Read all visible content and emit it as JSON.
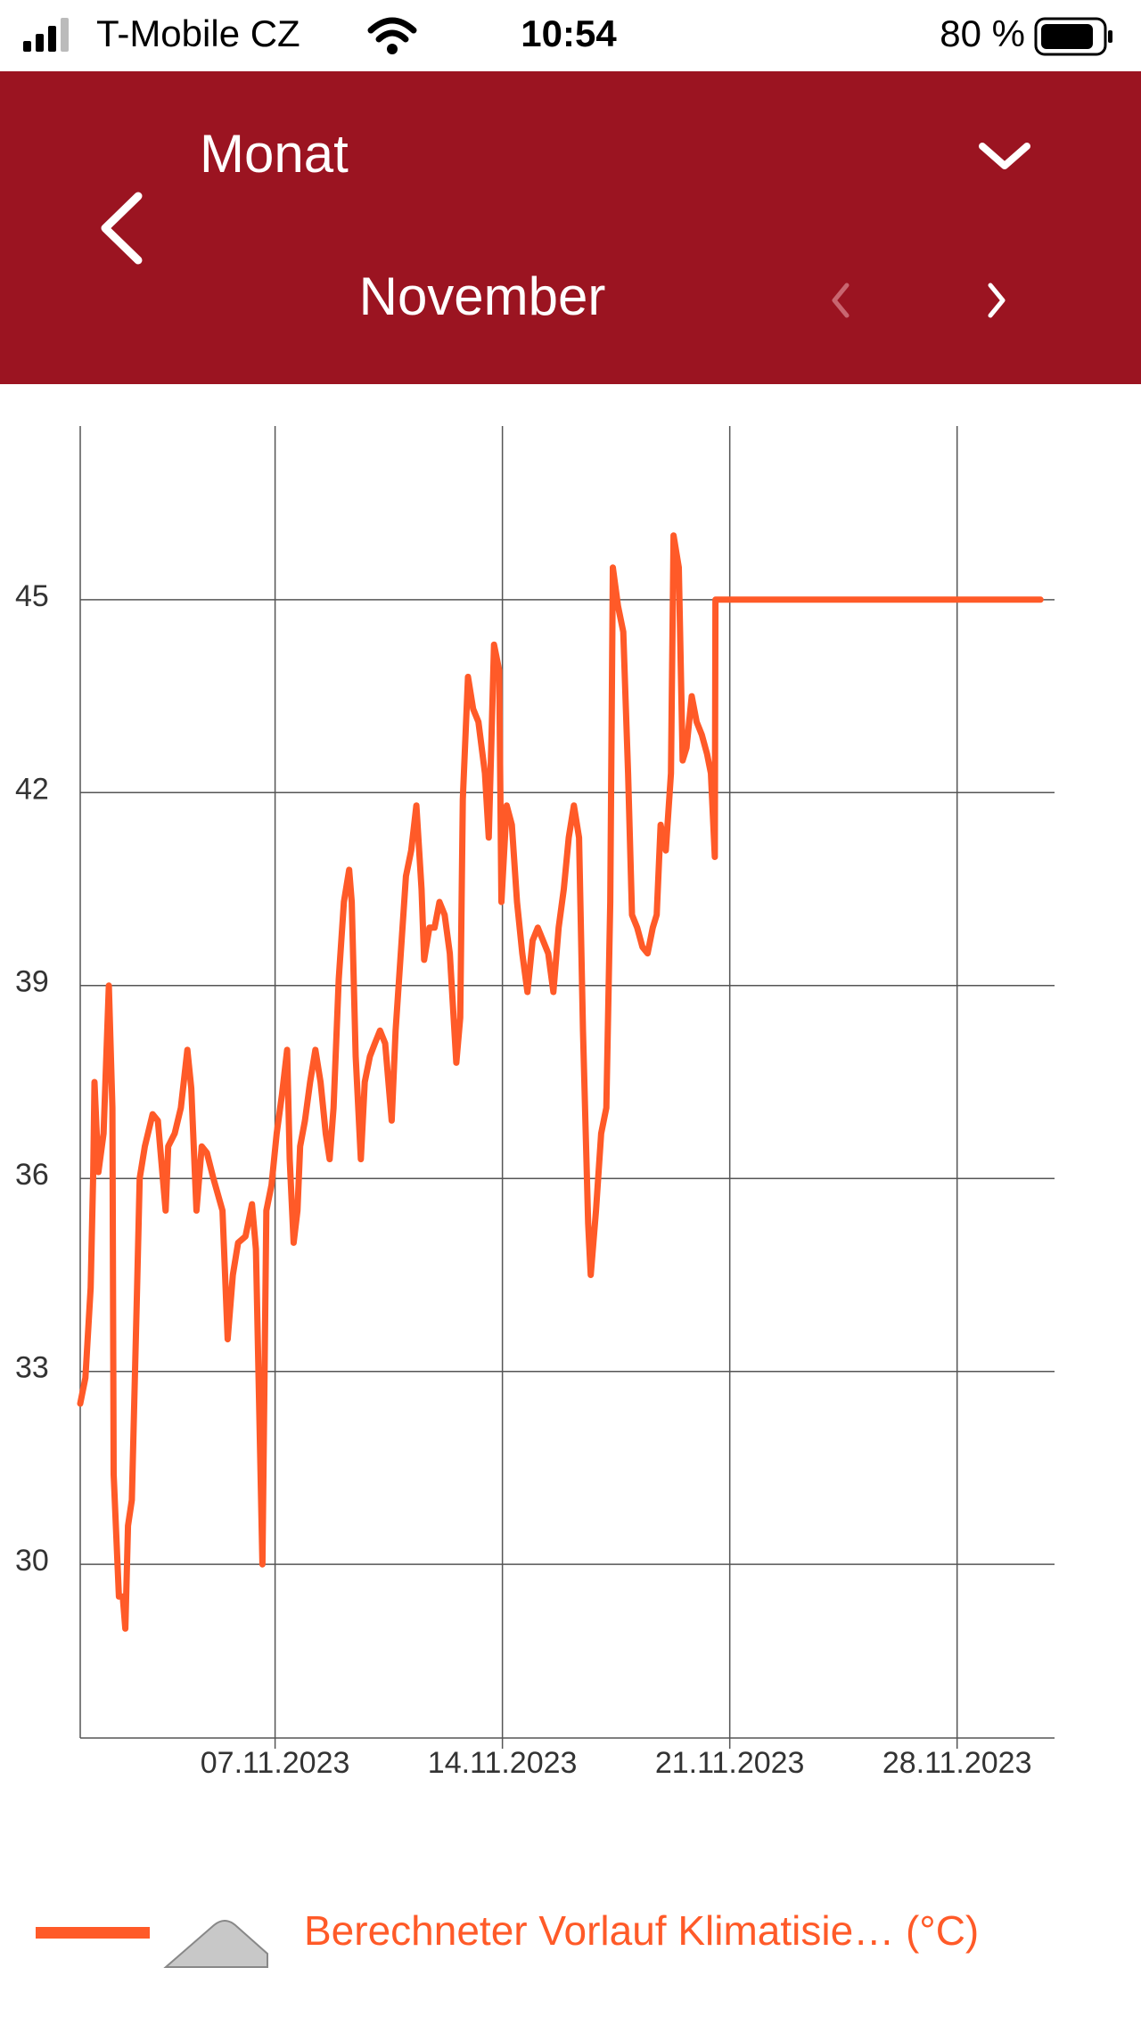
{
  "status_bar": {
    "carrier": "T-Mobile CZ",
    "time": "10:54",
    "battery": "80 %"
  },
  "header": {
    "period_label": "Monat",
    "period": "November"
  },
  "chart_data": {
    "type": "line",
    "x": [
      1.0,
      1.16,
      1.32,
      1.4,
      1.44,
      1.56,
      1.72,
      1.88,
      1.99,
      2.03,
      2.19,
      2.31,
      2.39,
      2.47,
      2.59,
      2.75,
      2.83,
      2.99,
      3.23,
      3.39,
      3.63,
      3.71,
      3.91,
      4.1,
      4.3,
      4.42,
      4.58,
      4.74,
      4.9,
      5.1,
      5.38,
      5.54,
      5.7,
      5.86,
      6.09,
      6.29,
      6.41,
      6.61,
      6.73,
      6.89,
      7.05,
      7.21,
      7.37,
      7.45,
      7.57,
      7.69,
      7.77,
      7.92,
      8.08,
      8.24,
      8.4,
      8.56,
      8.68,
      8.8,
      8.96,
      9.12,
      9.28,
      9.36,
      9.48,
      9.64,
      9.76,
      9.92,
      10.07,
      10.23,
      10.39,
      10.59,
      10.71,
      10.87,
      11.03,
      11.19,
      11.35,
      11.51,
      11.59,
      11.75,
      11.91,
      12.06,
      12.22,
      12.38,
      12.58,
      12.7,
      12.78,
      12.94,
      13.1,
      13.26,
      13.46,
      13.58,
      13.74,
      13.9,
      13.97,
      14.13,
      14.29,
      14.45,
      14.61,
      14.77,
      14.93,
      15.09,
      15.25,
      15.41,
      15.57,
      15.73,
      15.89,
      16.04,
      16.2,
      16.36,
      16.48,
      16.64,
      16.72,
      16.88,
      17.04,
      17.2,
      17.32,
      17.4,
      17.56,
      17.72,
      17.87,
      17.99,
      18.15,
      18.31,
      18.47,
      18.63,
      18.75,
      18.87,
      19.03,
      19.19,
      19.27,
      19.43,
      19.55,
      19.67,
      19.83,
      19.98,
      20.14,
      20.3,
      20.42,
      20.54,
      20.56,
      30.57
    ],
    "series": [
      {
        "name": "Berechneter Vorlauf Klimatisie… (°C)",
        "color": "#ff5a28",
        "values": [
          32.5,
          32.9,
          34.3,
          36.1,
          37.5,
          36.1,
          36.7,
          39.0,
          37.1,
          31.4,
          29.5,
          29.5,
          29.0,
          30.6,
          31.0,
          34.3,
          36.0,
          36.5,
          37.0,
          36.9,
          35.5,
          36.5,
          36.7,
          37.1,
          38.0,
          37.4,
          35.5,
          36.5,
          36.4,
          36.0,
          35.5,
          33.5,
          34.5,
          35.0,
          35.1,
          35.6,
          34.9,
          30.0,
          35.5,
          35.9,
          36.7,
          37.3,
          38.0,
          36.3,
          35.0,
          35.5,
          36.5,
          36.9,
          37.5,
          38.0,
          37.5,
          36.7,
          36.3,
          37.1,
          39.1,
          40.3,
          40.8,
          40.3,
          37.9,
          36.3,
          37.5,
          37.9,
          38.1,
          38.3,
          38.1,
          36.9,
          38.3,
          39.5,
          40.7,
          41.1,
          41.8,
          40.5,
          39.4,
          39.9,
          39.9,
          40.3,
          40.1,
          39.5,
          37.8,
          38.5,
          41.9,
          43.8,
          43.3,
          43.1,
          42.3,
          41.3,
          44.3,
          43.9,
          40.3,
          41.8,
          41.5,
          40.3,
          39.5,
          38.9,
          39.7,
          39.9,
          39.7,
          39.5,
          38.9,
          39.9,
          40.5,
          41.3,
          41.8,
          41.3,
          38.3,
          35.3,
          34.5,
          35.5,
          36.7,
          37.1,
          40.3,
          45.5,
          44.9,
          44.5,
          42.3,
          40.1,
          39.9,
          39.6,
          39.5,
          39.9,
          40.1,
          41.5,
          41.1,
          42.3,
          46.0,
          45.5,
          42.5,
          42.7,
          43.5,
          43.1,
          42.9,
          42.6,
          42.3,
          41.0,
          45.0,
          45.0
        ]
      }
    ],
    "xlim": [
      1,
      31
    ],
    "xticks": [
      {
        "value": 7,
        "label": "07.11.2023"
      },
      {
        "value": 14,
        "label": "14.11.2023"
      },
      {
        "value": 21,
        "label": "21.11.2023"
      },
      {
        "value": 28,
        "label": "28.11.2023"
      }
    ],
    "ylim": [
      27.3,
      47.7
    ],
    "yticks": [
      30,
      33,
      36,
      39,
      42,
      45
    ],
    "grid": true
  }
}
